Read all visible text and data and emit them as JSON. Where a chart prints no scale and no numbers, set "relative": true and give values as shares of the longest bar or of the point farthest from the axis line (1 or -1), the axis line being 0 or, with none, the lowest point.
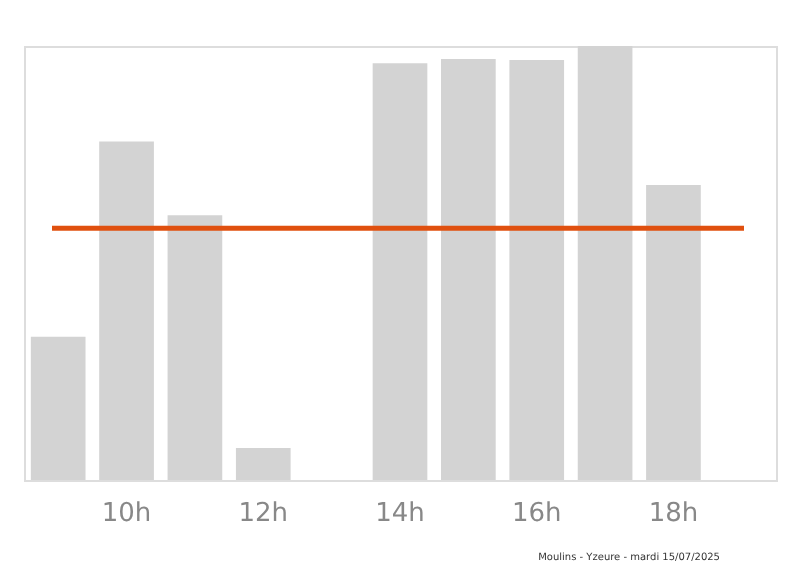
{
  "chart_data": {
    "type": "bar",
    "relative": true,
    "categories": [
      null,
      "10h",
      null,
      "12h",
      null,
      "14h",
      null,
      "16h",
      null,
      "18h",
      null
    ],
    "values": [
      0.33,
      0.78,
      0.61,
      0.074,
      0,
      0.96,
      0.97,
      0.968,
      1,
      0.68,
      0
    ],
    "color": "#d3d3d3",
    "ref_lines": [
      {
        "axis": "y",
        "value": 0.58,
        "color": "#e0500f"
      }
    ],
    "annotations": [
      "Moulins - Yzeure - mardi 15/07/2025"
    ],
    "grid": false
  }
}
